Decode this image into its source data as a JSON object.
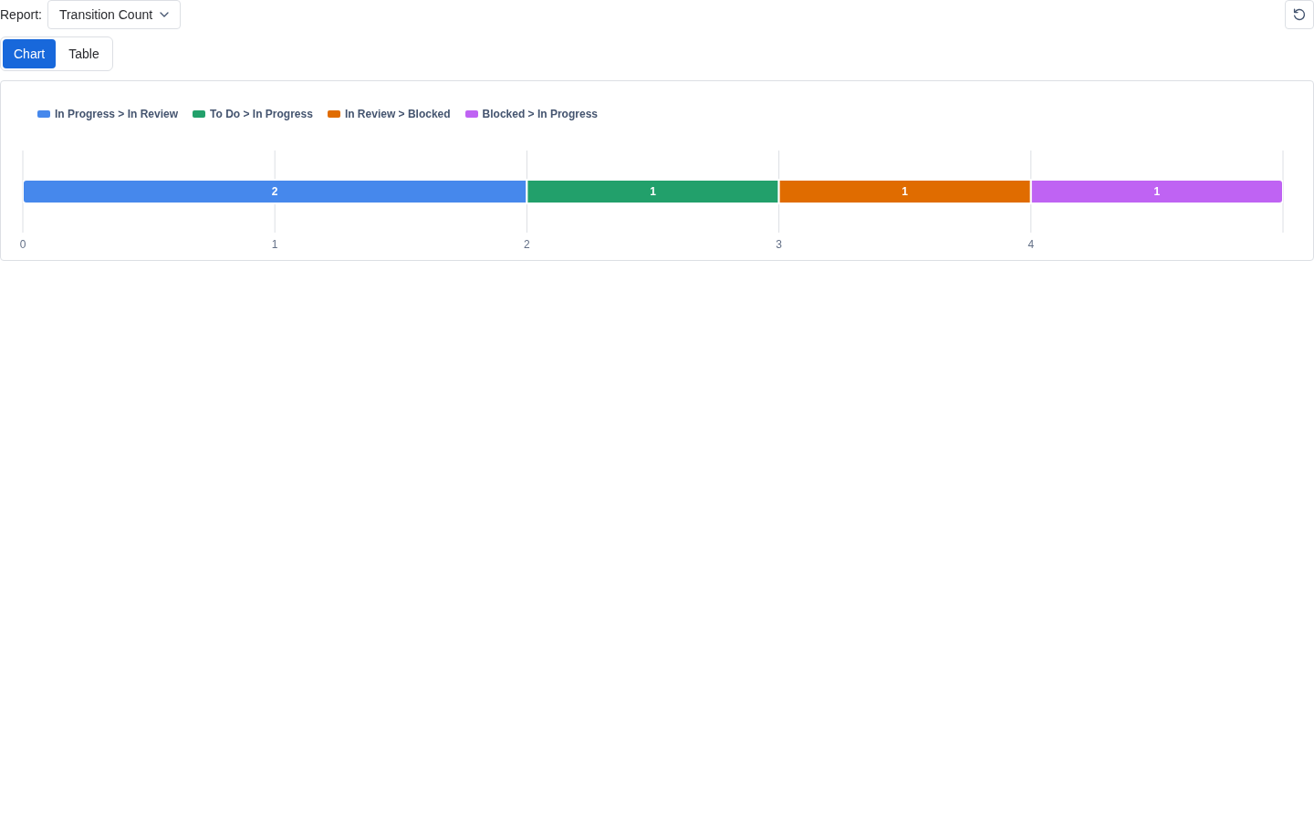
{
  "chart_data": {
    "type": "bar",
    "orientation": "horizontal",
    "stacked": true,
    "categories": [
      null
    ],
    "series": [
      {
        "name": "In Progress > In Review",
        "color": "#4688ec",
        "values": [
          2
        ]
      },
      {
        "name": "To Do > In Progress",
        "color": "#22a06b",
        "values": [
          1
        ]
      },
      {
        "name": "In Review > Blocked",
        "color": "#e06c00",
        "values": [
          1
        ]
      },
      {
        "name": "Blocked > In Progress",
        "color": "#bf63f3",
        "values": [
          1
        ]
      }
    ],
    "xlim": [
      0,
      5
    ],
    "xticks": [
      0,
      1,
      2,
      3,
      4,
      {
        "value": 5,
        "label": null
      }
    ],
    "grid": "x",
    "legend": "top left",
    "data_labels": true,
    "tick_labels": "x",
    "annotations": [
      "Report:",
      "Transition Count",
      "Chart",
      "Table"
    ]
  }
}
